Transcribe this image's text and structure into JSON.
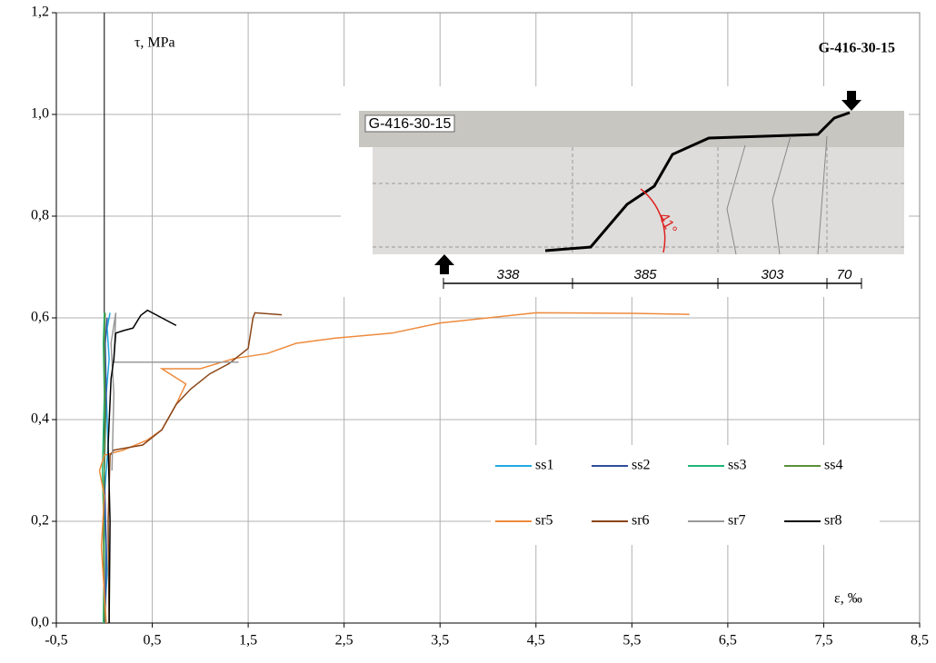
{
  "chart_data": {
    "type": "line",
    "title": "G-416-30-15",
    "y_label": "τ, MPa",
    "x_label": "ε, ‰",
    "xlim": [
      -0.5,
      8.5
    ],
    "ylim": [
      0,
      1.2
    ],
    "xticks": [
      {
        "value": -0.5,
        "label": "-0,5"
      },
      {
        "value": 0.5,
        "label": "0,5"
      },
      {
        "value": 1.5,
        "label": "1,5"
      },
      {
        "value": 2.5,
        "label": "2,5"
      },
      {
        "value": 3.5,
        "label": "3,5"
      },
      {
        "value": 4.5,
        "label": "4,5"
      },
      {
        "value": 5.5,
        "label": "5,5"
      },
      {
        "value": 6.5,
        "label": "6,5"
      },
      {
        "value": 7.5,
        "label": "7,5"
      },
      {
        "value": 8.5,
        "label": "8,5"
      }
    ],
    "yticks": [
      {
        "value": 0,
        "label": "0,0"
      },
      {
        "value": 0.2,
        "label": "0,2"
      },
      {
        "value": 0.4,
        "label": "0,4"
      },
      {
        "value": 0.6,
        "label": "0,6"
      },
      {
        "value": 0.8,
        "label": "0,8"
      },
      {
        "value": 1.0,
        "label": "1,0"
      },
      {
        "value": 1.2,
        "label": "1,2"
      }
    ],
    "grid": true,
    "legend": "lower right",
    "inset": {
      "specimen_label": "G-416-30-15",
      "angle": "41°",
      "dimensions": [
        "338",
        "385",
        "303",
        "70"
      ]
    },
    "series": [
      {
        "name": "ss1",
        "color": "#1fa9e1",
        "x": [
          0.0,
          0.03,
          0.0,
          0.04,
          0.02,
          0.05,
          0.03,
          0.06
        ],
        "values": [
          0.0,
          0.1,
          0.25,
          0.35,
          0.45,
          0.52,
          0.58,
          0.61
        ]
      },
      {
        "name": "ss2",
        "color": "#2f4d9e",
        "x": [
          0.01,
          0.02,
          0.0,
          0.02,
          0.01,
          0.03
        ],
        "values": [
          0.0,
          0.15,
          0.3,
          0.45,
          0.55,
          0.6
        ]
      },
      {
        "name": "ss3",
        "color": "#1fb577",
        "x": [
          -0.01,
          0.0,
          -0.02,
          0.0,
          -0.01,
          0.0
        ],
        "values": [
          0.0,
          0.15,
          0.3,
          0.45,
          0.55,
          0.61
        ]
      },
      {
        "name": "ss4",
        "color": "#5b8f3a",
        "x": [
          0.0,
          -0.01,
          0.01,
          0.0,
          0.01
        ],
        "values": [
          0.0,
          0.2,
          0.4,
          0.55,
          0.61
        ]
      },
      {
        "name": "sr5",
        "color": "#ee8a3c",
        "x": [
          0.02,
          -0.03,
          0.0,
          -0.05,
          0.0,
          0.2,
          0.45,
          0.6,
          0.75,
          0.85,
          0.6,
          1.0,
          1.35,
          1.7,
          2.0,
          2.4,
          3.0,
          3.5,
          4.0,
          4.5,
          5.5,
          6.1
        ],
        "values": [
          0.0,
          0.15,
          0.25,
          0.3,
          0.33,
          0.34,
          0.36,
          0.38,
          0.43,
          0.47,
          0.5,
          0.5,
          0.52,
          0.53,
          0.55,
          0.56,
          0.57,
          0.59,
          0.6,
          0.61,
          0.609,
          0.607
        ]
      },
      {
        "name": "sr6",
        "color": "#8a4516",
        "x": [
          0.05,
          0.04,
          0.06,
          0.1,
          0.4,
          0.6,
          0.75,
          0.9,
          1.1,
          1.3,
          1.5,
          1.55,
          1.57,
          1.85
        ],
        "values": [
          0.0,
          0.2,
          0.33,
          0.34,
          0.35,
          0.38,
          0.43,
          0.46,
          0.49,
          0.51,
          0.54,
          0.6,
          0.61,
          0.606
        ]
      },
      {
        "name": "sr7",
        "color": "#999999",
        "x": [
          0.08,
          0.1,
          0.07,
          0.12,
          0.1,
          0.12,
          1.4
        ],
        "values": [
          0.3,
          0.45,
          0.55,
          0.61,
          0.513,
          0.513,
          0.513
        ]
      },
      {
        "name": "sr8",
        "color": "#000000",
        "x": [
          0.05,
          0.06,
          0.04,
          0.07,
          0.1,
          0.12,
          0.2,
          0.3,
          0.38,
          0.45,
          0.75
        ],
        "values": [
          0.0,
          0.2,
          0.35,
          0.48,
          0.52,
          0.57,
          0.575,
          0.58,
          0.605,
          0.615,
          0.585
        ]
      }
    ]
  }
}
